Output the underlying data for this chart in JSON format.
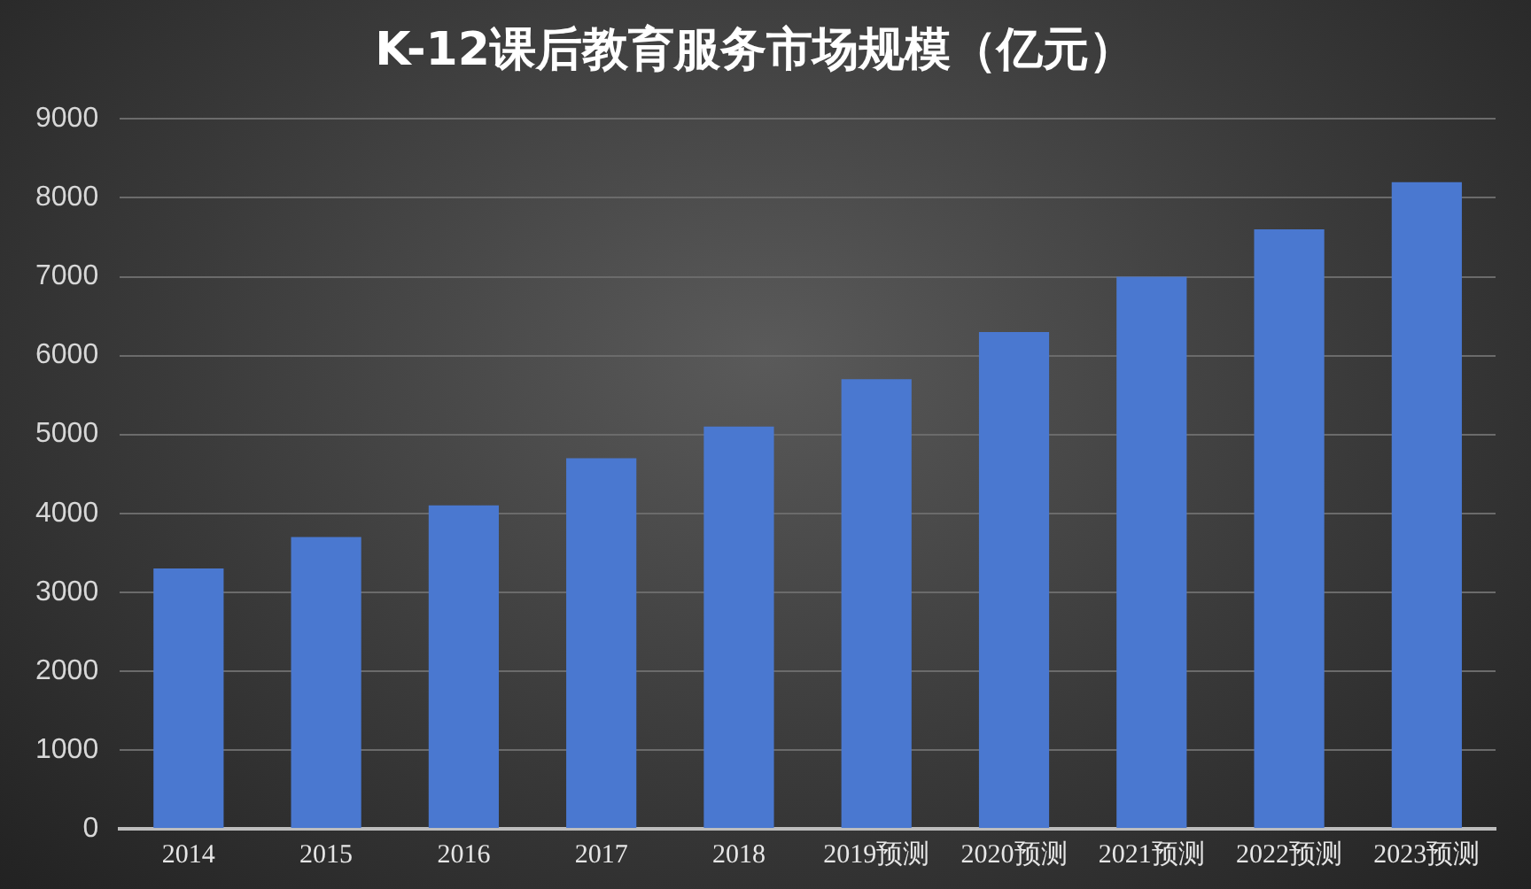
{
  "chart_data": {
    "type": "bar",
    "title": "K-12课后教育服务市场规模（亿元）",
    "categories": [
      "2014",
      "2015",
      "2016",
      "2017",
      "2018",
      "2019预测",
      "2020预测",
      "2021预测",
      "2022预测",
      "2023预测"
    ],
    "values": [
      3300,
      3700,
      4100,
      4700,
      5100,
      5700,
      6300,
      7000,
      7600,
      8200
    ],
    "color": "#4a78d0",
    "ylim": [
      0,
      9000
    ],
    "yticks": [
      0,
      1000,
      2000,
      3000,
      4000,
      5000,
      6000,
      7000,
      8000,
      9000
    ],
    "grid": "y"
  }
}
